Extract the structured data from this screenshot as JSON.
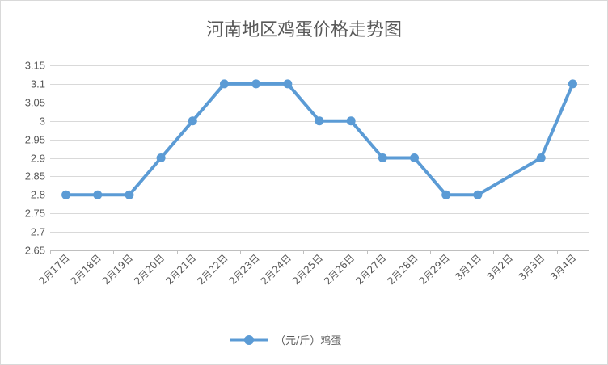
{
  "chart_data": {
    "type": "line",
    "title": "河南地区鸡蛋价格走势图",
    "categories": [
      "2月17日",
      "2月18日",
      "2月19日",
      "2月20日",
      "2月21日",
      "2月22日",
      "2月23日",
      "2月24日",
      "2月25日",
      "2月26日",
      "2月27日",
      "2月28日",
      "2月29日",
      "3月1日",
      "3月2日",
      "3月3日",
      "3月4日"
    ],
    "series": [
      {
        "name": "（元/斤）鸡蛋",
        "values": [
          2.8,
          2.8,
          2.8,
          2.9,
          3.0,
          3.1,
          3.1,
          3.1,
          3.0,
          3.0,
          2.9,
          2.9,
          2.8,
          2.8,
          null,
          2.9,
          3.1
        ]
      }
    ],
    "ylim": [
      2.65,
      3.15
    ],
    "yticks": [
      "2.65",
      "2.7",
      "2.75",
      "2.8",
      "2.85",
      "2.9",
      "2.95",
      "3",
      "3.05",
      "3.1",
      "3.15"
    ],
    "grid": true,
    "legend_position": "bottom",
    "line_color": "#5b9bd5"
  }
}
